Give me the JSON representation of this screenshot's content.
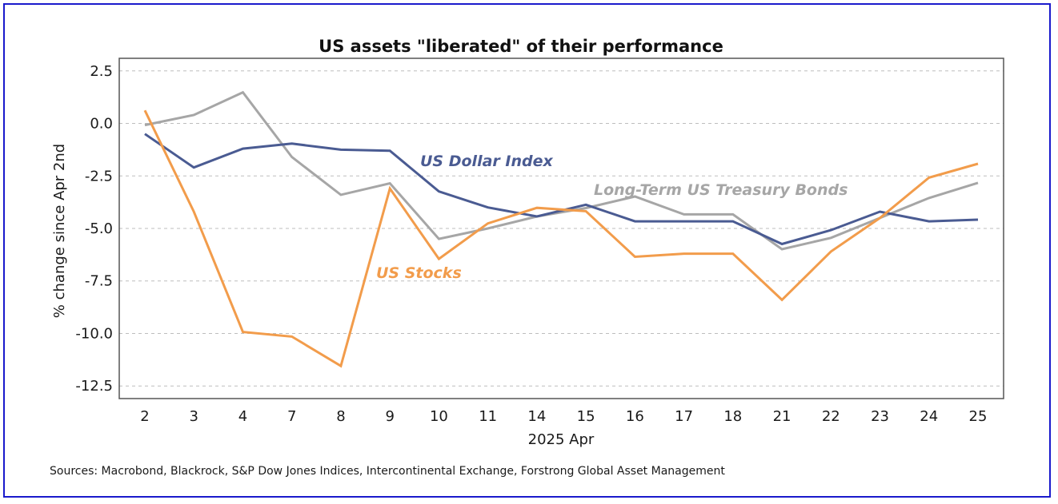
{
  "chart_data": {
    "type": "line",
    "title": "US assets \"liberated\" of their performance",
    "xlabel": "2025 Apr",
    "ylabel": "% change since Apr 2nd",
    "categories": [
      "2",
      "3",
      "4",
      "7",
      "8",
      "9",
      "10",
      "11",
      "14",
      "15",
      "16",
      "17",
      "18",
      "21",
      "22",
      "23",
      "24",
      "25"
    ],
    "ylim": [
      -13.1,
      3.1
    ],
    "yticks": [
      2.5,
      0.0,
      -2.5,
      -5.0,
      -7.5,
      -10.0,
      -12.5
    ],
    "ytick_labels": [
      "2.5",
      "0.0",
      "-2.5",
      "-5.0",
      "-7.5",
      "-10.0",
      "-12.5"
    ],
    "grid": "horizontal-dashed",
    "series": [
      {
        "name": "Long-Term US Treasury Bonds",
        "color": "#a6a6a6",
        "values": [
          -0.08,
          0.4,
          1.48,
          -1.6,
          -3.4,
          -2.85,
          -5.5,
          -5.0,
          -4.43,
          -4.03,
          -3.48,
          -4.33,
          -4.33,
          -5.99,
          -5.45,
          -4.5,
          -3.55,
          -2.83
        ]
      },
      {
        "name": "US Dollar Index",
        "color": "#4a5b92",
        "values": [
          -0.5,
          -2.1,
          -1.2,
          -0.96,
          -1.25,
          -1.3,
          -3.24,
          -4.0,
          -4.43,
          -3.87,
          -4.66,
          -4.66,
          -4.66,
          -5.74,
          -5.08,
          -4.2,
          -4.66,
          -4.58
        ]
      },
      {
        "name": "US Stocks",
        "color": "#f29c4b",
        "values": [
          0.62,
          -4.2,
          -9.93,
          -10.15,
          -11.55,
          -3.1,
          -6.45,
          -4.76,
          -4.02,
          -4.18,
          -6.35,
          -6.2,
          -6.2,
          -8.4,
          -6.1,
          -4.5,
          -2.58,
          -1.92
        ]
      }
    ],
    "annotations": [
      {
        "text": "US Dollar Index",
        "series": "US Dollar Index"
      },
      {
        "text": "Long-Term US Treasury Bonds",
        "series": "Long-Term US Treasury Bonds"
      },
      {
        "text": "US Stocks",
        "series": "US Stocks"
      }
    ],
    "source": "Sources: Macrobond, Blackrock, S&P Dow Jones Indices, Intercontinental Exchange, Forstrong Global Asset Management"
  }
}
